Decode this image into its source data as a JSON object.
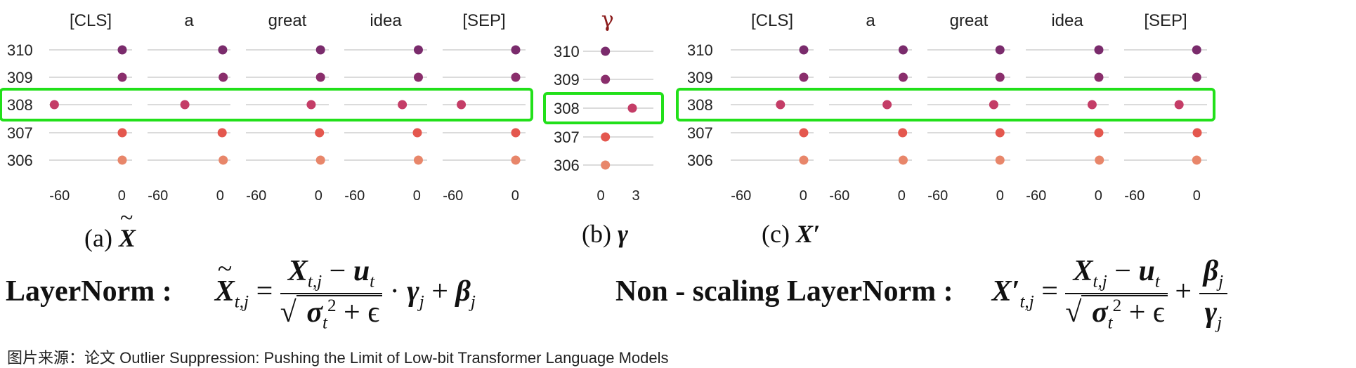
{
  "colors": {
    "highlight": "#22e01a",
    "gridline": "#cfcfcf",
    "rows": {
      "310": "#7a2b6c",
      "309": "#8a2e6c",
      "308": "#c43d67",
      "307": "#e4574e",
      "306": "#e8866a"
    }
  },
  "chart_data": [
    {
      "type": "scatter",
      "id": "a",
      "caption": "(a) X",
      "panels": [
        "[CLS]",
        "a",
        "great",
        "idea",
        "[SEP]"
      ],
      "rows": [
        "310",
        "309",
        "308",
        "307",
        "306"
      ],
      "highlight_row": "308",
      "xlim": [
        -70,
        10
      ],
      "xticks": [
        -60,
        0
      ],
      "values": [
        [
          0.5,
          2.5,
          2,
          1.5,
          0.5
        ],
        [
          0.5,
          3,
          2,
          1.5,
          0.5
        ],
        [
          -65,
          -34,
          -7,
          -14,
          -52
        ],
        [
          0.5,
          2,
          1,
          0.5,
          0.5
        ],
        [
          0.5,
          3,
          2,
          1.5,
          0.5
        ]
      ]
    },
    {
      "type": "scatter",
      "id": "b",
      "caption": "(b) γ",
      "panels": [
        "γ"
      ],
      "rows": [
        "310",
        "309",
        "308",
        "307",
        "306"
      ],
      "highlight_row": "308",
      "xlim": [
        -1.5,
        4.5
      ],
      "xticks": [
        0,
        3
      ],
      "values": [
        [
          0.4
        ],
        [
          0.4
        ],
        [
          2.7
        ],
        [
          0.4
        ],
        [
          0.4
        ]
      ]
    },
    {
      "type": "scatter",
      "id": "c",
      "caption": "(c) X′",
      "panels": [
        "[CLS]",
        "a",
        "great",
        "idea",
        "[SEP]"
      ],
      "rows": [
        "310",
        "309",
        "308",
        "307",
        "306"
      ],
      "highlight_row": "308",
      "xlim": [
        -70,
        10
      ],
      "xticks": [
        -60,
        0
      ],
      "values": [
        [
          0.5,
          1.5,
          0,
          0.5,
          0
        ],
        [
          0.5,
          1.5,
          0,
          0.5,
          0
        ],
        [
          -22,
          -14,
          -6,
          -6,
          -17
        ],
        [
          0.5,
          1,
          0,
          0.5,
          0.5
        ],
        [
          0.5,
          1.5,
          0,
          1,
          0
        ]
      ]
    }
  ],
  "captions": {
    "a_prefix": "(a)",
    "a_sym": "X",
    "a_tilde": "~",
    "b_prefix": "(b)",
    "b_sym": "γ",
    "c_prefix": "(c)",
    "c_sym": "X′"
  },
  "formulas": {
    "ln_label": "LayerNorm :",
    "ln_lhs": "X",
    "ln_tilde": "~",
    "ln_lhs_sub": "t,j",
    "eq": "=",
    "ln_num_x": "X",
    "ln_num_sub": "t,j",
    "ln_num_minus": "−",
    "ln_num_u": "u",
    "ln_num_u_sub": "t",
    "ln_den_sigma": "σ",
    "ln_den_sub": "t",
    "ln_den_sup": "2",
    "ln_den_rest": "+ ϵ",
    "ln_tail_dot": "·",
    "ln_tail_gamma": "γ",
    "ln_tail_gamma_sub": "j",
    "ln_tail_plus": "+",
    "ln_tail_beta": "β",
    "ln_tail_beta_sub": "j",
    "ns_label": "Non - scaling LayerNorm :",
    "ns_lhs": "X′",
    "ns_lhs_sub": "t,j",
    "ns_beta": "β",
    "ns_beta_sub": "j",
    "ns_gamma": "γ",
    "ns_gamma_sub": "j"
  },
  "source": "图片来源：论文 Outlier Suppression: Pushing the Limit of Low-bit Transformer Language Models"
}
